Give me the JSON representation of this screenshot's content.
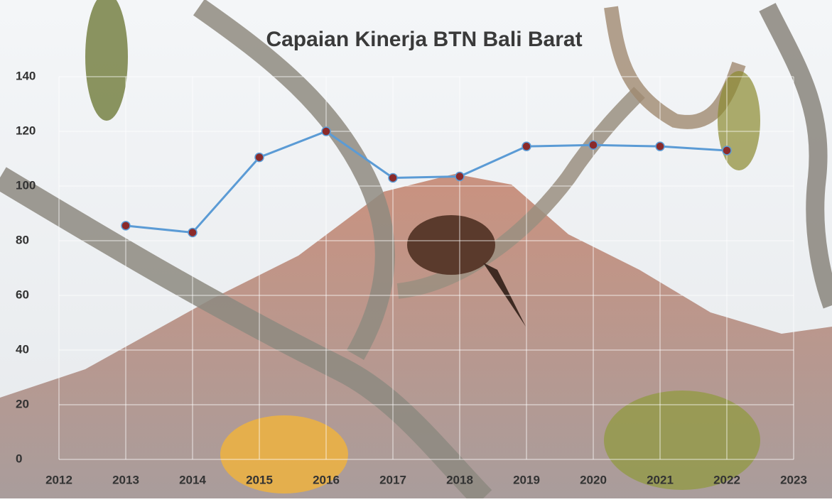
{
  "chart_data": {
    "type": "line",
    "title": "Capaian Kinerja BTN Bali Barat",
    "x": [
      2013,
      2014,
      2015,
      2016,
      2017,
      2018,
      2019,
      2020,
      2021,
      2022
    ],
    "values": [
      85.5,
      83,
      110.5,
      120,
      103,
      103.5,
      114.5,
      115,
      114.5,
      113
    ],
    "color": "#5b9bd5",
    "marker_color": "#8b2a2a",
    "xlim": [
      2012,
      2023
    ],
    "xticks": [
      2012,
      2013,
      2014,
      2015,
      2016,
      2017,
      2018,
      2019,
      2020,
      2021,
      2022,
      2023
    ],
    "ylim": [
      0,
      140
    ],
    "yticks": [
      0,
      20,
      40,
      60,
      80,
      100,
      120,
      140
    ],
    "grid": true
  }
}
